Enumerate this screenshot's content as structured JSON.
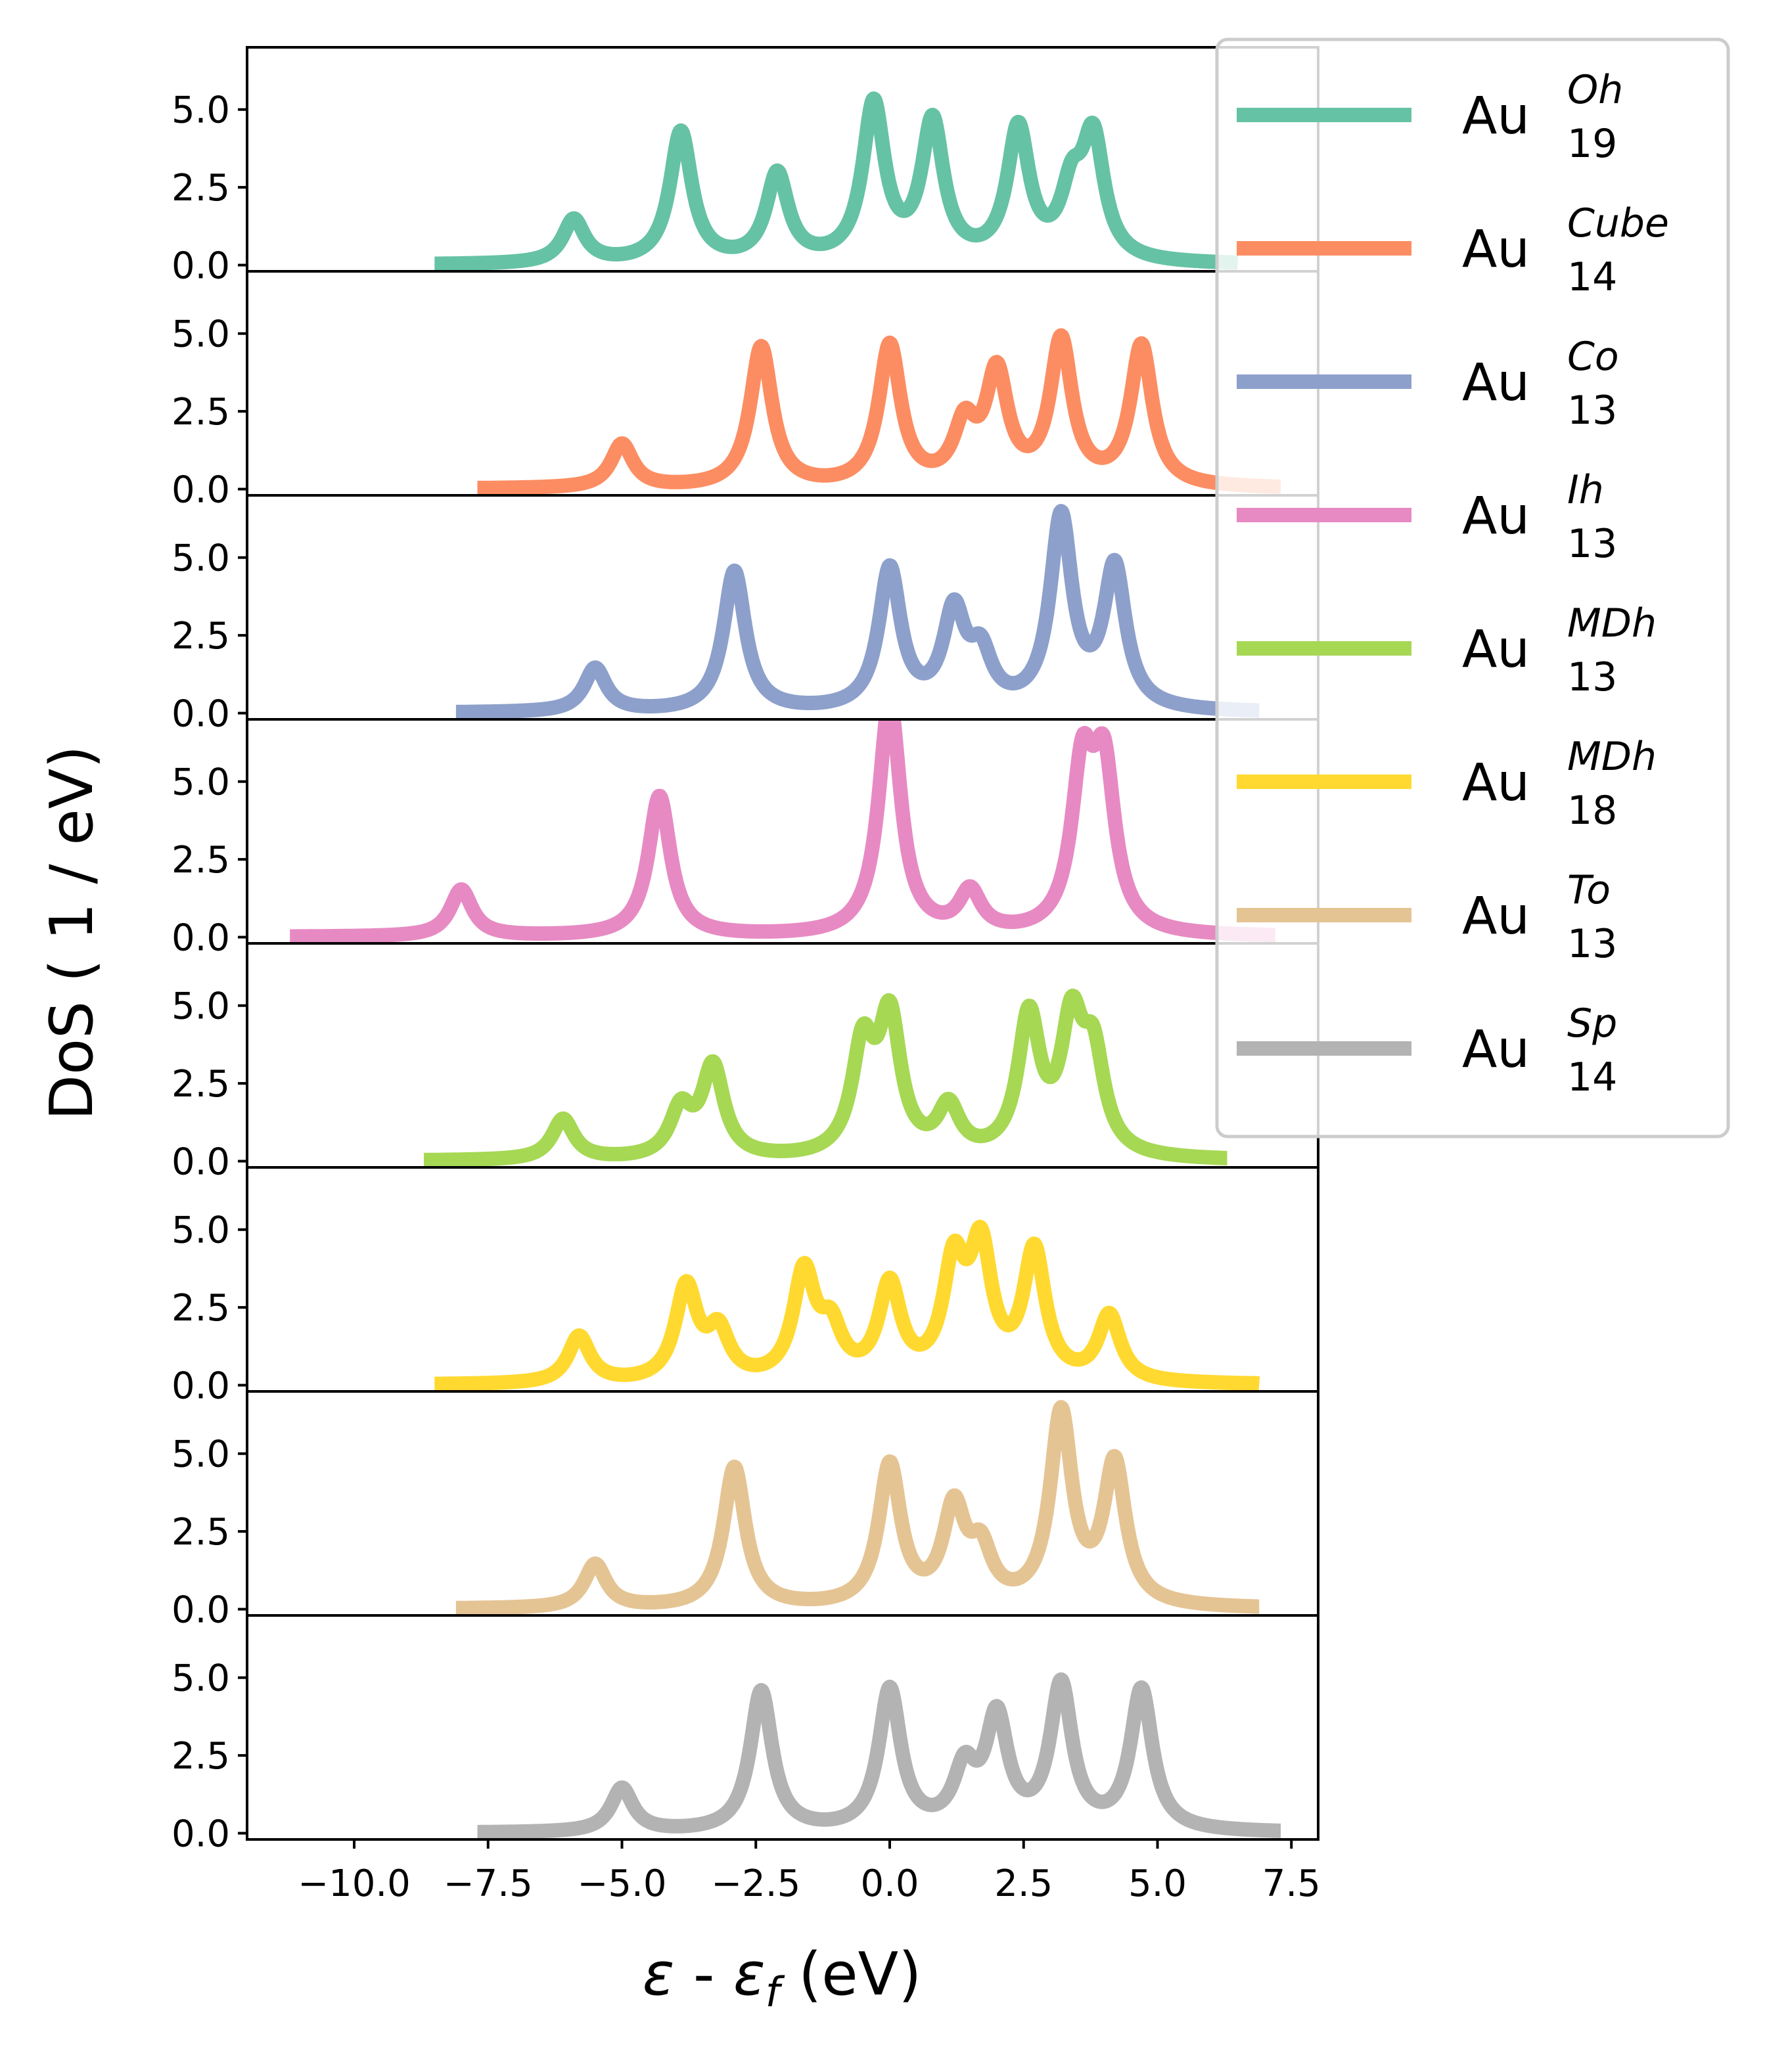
{
  "chart_data": {
    "type": "line",
    "xlabel": {
      "eps": "ε",
      "dash": " - ",
      "sub": "f",
      "unit": " (eV)"
    },
    "ylabel": "DoS ( 1 / eV)",
    "xlim": [
      -12,
      8
    ],
    "ylim": [
      -0.2,
      7.0
    ],
    "x_ticks": [
      -10.0,
      -7.5,
      -5.0,
      -2.5,
      0.0,
      2.5,
      5.0,
      7.5
    ],
    "x_tick_labels": [
      "−10.0",
      "−7.5",
      "−5.0",
      "−2.5",
      "0.0",
      "2.5",
      "5.0",
      "7.5"
    ],
    "y_ticks": [
      0.0,
      2.5,
      5.0
    ],
    "y_tick_labels": [
      "0.0",
      "2.5",
      "5.0"
    ],
    "legend_position": "top-right",
    "series": [
      {
        "name": "Au",
        "sub": "19",
        "sup": "Oh",
        "color": "#66c2a5",
        "x_range": [
          -8.5,
          6.5
        ],
        "peaks": [
          [
            -5.9,
            1.4
          ],
          [
            -3.9,
            4.2
          ],
          [
            -2.1,
            2.8
          ],
          [
            -0.3,
            5.0
          ],
          [
            0.8,
            4.4
          ],
          [
            2.4,
            4.2
          ],
          [
            3.4,
            2.0
          ],
          [
            3.8,
            3.8
          ]
        ]
      },
      {
        "name": "Au",
        "sub": "14",
        "sup": "Cube",
        "color": "#fc8d62",
        "x_range": [
          -7.7,
          7.3
        ],
        "peaks": [
          [
            -5.0,
            1.4
          ],
          [
            -2.4,
            4.5
          ],
          [
            0.0,
            4.5
          ],
          [
            1.4,
            1.8
          ],
          [
            2.0,
            3.5
          ],
          [
            3.2,
            4.6
          ],
          [
            4.7,
            4.5
          ]
        ]
      },
      {
        "name": "Au",
        "sub": "13",
        "sup": "Co",
        "color": "#8da0cb",
        "x_range": [
          -8.1,
          6.9
        ],
        "peaks": [
          [
            -5.5,
            1.4
          ],
          [
            -2.9,
            4.5
          ],
          [
            0.0,
            4.5
          ],
          [
            1.2,
            3.0
          ],
          [
            1.7,
            1.6
          ],
          [
            3.2,
            6.1
          ],
          [
            4.2,
            4.5
          ]
        ]
      },
      {
        "name": "Au",
        "sub": "13",
        "sup": "Ih",
        "color": "#e78ac3",
        "x_range": [
          -11.2,
          7.2
        ],
        "peaks": [
          [
            -8.0,
            1.5
          ],
          [
            -4.3,
            4.5
          ],
          [
            0.0,
            7.5
          ],
          [
            1.5,
            1.3
          ],
          [
            3.6,
            5.0
          ],
          [
            4.0,
            5.0
          ]
        ]
      },
      {
        "name": "Au",
        "sub": "13",
        "sup": "MDh",
        "color": "#a6d854",
        "x_range": [
          -8.7,
          6.3
        ],
        "peaks": [
          [
            -6.1,
            1.3
          ],
          [
            -3.9,
            1.5
          ],
          [
            -3.3,
            2.9
          ],
          [
            -0.5,
            3.4
          ],
          [
            0.0,
            4.3
          ],
          [
            1.1,
            1.5
          ],
          [
            2.6,
            4.4
          ],
          [
            3.4,
            4.0
          ],
          [
            3.8,
            3.0
          ]
        ]
      },
      {
        "name": "Au",
        "sub": "18",
        "sup": "MDh",
        "color": "#ffd92f",
        "x_range": [
          -8.5,
          6.9
        ],
        "peaks": [
          [
            -5.8,
            1.5
          ],
          [
            -3.8,
            3.0
          ],
          [
            -3.2,
            1.5
          ],
          [
            -1.6,
            3.4
          ],
          [
            -1.1,
            1.5
          ],
          [
            0.0,
            3.0
          ],
          [
            1.2,
            3.5
          ],
          [
            1.7,
            4.0
          ],
          [
            2.7,
            4.1
          ],
          [
            4.1,
            2.1
          ]
        ]
      },
      {
        "name": "Au",
        "sub": "13",
        "sup": "To",
        "color": "#e5c494",
        "x_range": [
          -8.1,
          6.9
        ],
        "peaks": [
          [
            -5.5,
            1.4
          ],
          [
            -2.9,
            4.5
          ],
          [
            0.0,
            4.5
          ],
          [
            1.2,
            3.0
          ],
          [
            1.7,
            1.6
          ],
          [
            3.2,
            6.1
          ],
          [
            4.2,
            4.5
          ]
        ]
      },
      {
        "name": "Au",
        "sub": "14",
        "sup": "Sp",
        "color": "#b3b3b3",
        "x_range": [
          -7.7,
          7.3
        ],
        "peaks": [
          [
            -5.0,
            1.4
          ],
          [
            -2.4,
            4.5
          ],
          [
            0.0,
            4.5
          ],
          [
            1.4,
            1.8
          ],
          [
            2.0,
            3.5
          ],
          [
            3.2,
            4.6
          ],
          [
            4.7,
            4.5
          ]
        ]
      }
    ]
  }
}
